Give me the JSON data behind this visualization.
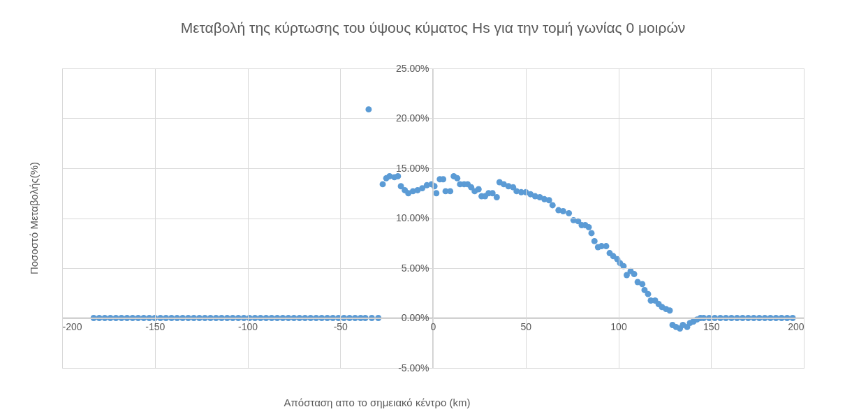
{
  "chart_data": {
    "type": "scatter",
    "title": "Μεταβολή της κύρτωσης του ύψους κύματος Hs για την τομή γωνίας 0 μοιρών",
    "xlabel": "Απόσταση απο το σημειακό κέντρο (km)",
    "ylabel": "Ποσοστό Μεταβολής(%)",
    "series": [
      {
        "color": "#5b9bd5",
        "x": [
          -183,
          -180,
          -177,
          -174,
          -171,
          -168,
          -165,
          -162,
          -159,
          -156,
          -153,
          -150,
          -147,
          -144,
          -141,
          -138,
          -135,
          -132,
          -129,
          -126,
          -123,
          -120,
          -117,
          -114,
          -111,
          -108,
          -105,
          -102,
          -99,
          -96,
          -93,
          -90,
          -87,
          -84,
          -81,
          -78,
          -75,
          -72,
          -69,
          -66,
          -63,
          -60,
          -57,
          -54,
          -51,
          -48,
          -45,
          -42,
          -39,
          -36.5,
          -34.7,
          -33,
          -29.5,
          -27.1,
          -25.2,
          -23.4,
          -20.8,
          -18.9,
          -17.3,
          -15.2,
          -13.3,
          -10.8,
          -8.3,
          -5.8,
          -3.3,
          -0.8,
          0.8,
          1.8,
          3.7,
          5.5,
          6.8,
          9.3,
          11.2,
          13.1,
          14.6,
          16.8,
          18.7,
          20.6,
          22.5,
          24.6,
          26.2,
          28.1,
          30.0,
          32.1,
          34.4,
          35.9,
          38.2,
          40.7,
          43.2,
          45.1,
          47.6,
          50.1,
          52.6,
          55.1,
          57.6,
          60.1,
          62.6,
          64.5,
          67.7,
          70.2,
          73.3,
          75.8,
          78.3,
          80.2,
          82.1,
          84.0,
          85.5,
          87.1,
          89.0,
          90.9,
          93.4,
          95.3,
          97.2,
          99.4,
          100.9,
          102.8,
          104.5,
          106.6,
          108.5,
          110.4,
          112.9,
          114.1,
          116.0,
          117.5,
          119.8,
          121.7,
          123.5,
          125.7,
          127.7,
          129.2,
          131.1,
          133.2,
          134.8,
          137.1,
          138.6,
          140.5,
          142.4,
          144.3,
          146,
          149,
          152,
          155,
          158,
          161,
          164,
          167,
          170,
          173,
          176,
          179,
          182,
          185,
          188,
          191,
          194
        ],
        "values": [
          0,
          0,
          0,
          0,
          0,
          0,
          0,
          0,
          0,
          0,
          0,
          0,
          0,
          0,
          0,
          0,
          0,
          0,
          0,
          0,
          0,
          0,
          0,
          0,
          0,
          0,
          0,
          0,
          0,
          0,
          0,
          0,
          0,
          0,
          0,
          0,
          0,
          0,
          0,
          0,
          0,
          0,
          0,
          0,
          0,
          0,
          0,
          0,
          0,
          0,
          20.9,
          0,
          0,
          13.4,
          14.0,
          14.2,
          14.1,
          14.2,
          13.2,
          12.8,
          12.5,
          12.7,
          12.8,
          13.0,
          13.3,
          13.4,
          13.2,
          12.5,
          13.9,
          13.9,
          12.7,
          12.7,
          14.2,
          14.0,
          13.4,
          13.4,
          13.4,
          13.1,
          12.7,
          12.9,
          12.2,
          12.2,
          12.5,
          12.5,
          12.1,
          13.6,
          13.4,
          13.2,
          13.1,
          12.7,
          12.6,
          12.6,
          12.4,
          12.2,
          12.1,
          11.9,
          11.8,
          11.3,
          10.8,
          10.7,
          10.5,
          9.8,
          9.7,
          9.3,
          9.3,
          9.1,
          8.5,
          7.7,
          7.1,
          7.2,
          7.2,
          6.5,
          6.2,
          5.9,
          5.5,
          5.2,
          4.3,
          4.7,
          4.4,
          3.6,
          3.4,
          2.8,
          2.4,
          1.75,
          1.75,
          1.4,
          1.1,
          0.9,
          0.75,
          -0.7,
          -0.9,
          -1.05,
          -0.7,
          -0.9,
          -0.5,
          -0.35,
          -0.15,
          0,
          0,
          0,
          0,
          0,
          0,
          0,
          0,
          0,
          0,
          0,
          0,
          0,
          0,
          0,
          0,
          0,
          0
        ]
      }
    ],
    "xlim": [
      -200,
      200
    ],
    "xticks": [
      -200,
      -150,
      -100,
      -50,
      0,
      50,
      100,
      150,
      200
    ],
    "ylim": [
      -5,
      25
    ],
    "yticks": [
      {
        "value": -5,
        "label": "-5.00%"
      },
      {
        "value": 0,
        "label": "0.00%"
      },
      {
        "value": 5,
        "label": "5.00%"
      },
      {
        "value": 10,
        "label": "10.00%"
      },
      {
        "value": 15,
        "label": "15.00%"
      },
      {
        "value": 20,
        "label": "20.00%"
      },
      {
        "value": 25,
        "label": "25.00%"
      }
    ],
    "grid": true,
    "marker": "circle"
  }
}
